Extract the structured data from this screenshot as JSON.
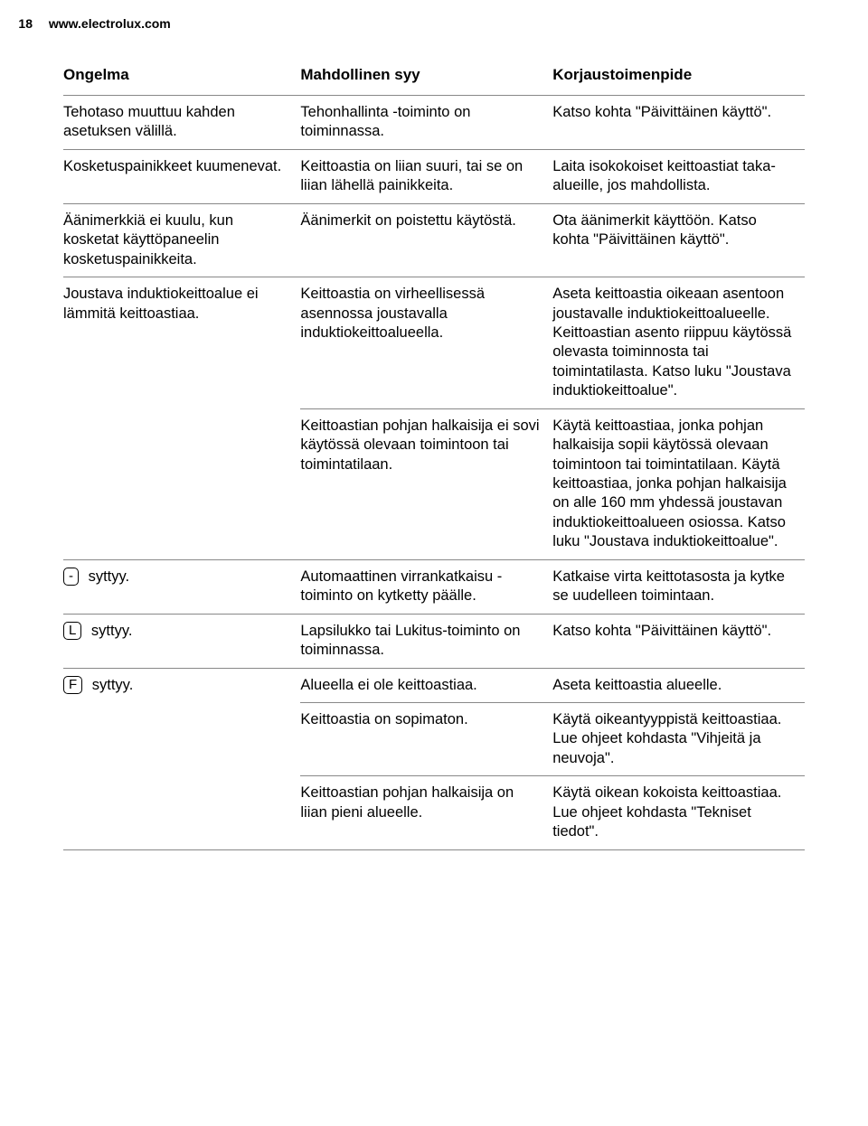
{
  "header": {
    "page_number": "18",
    "url": "www.electrolux.com"
  },
  "table": {
    "columns": [
      "Ongelma",
      "Mahdollinen syy",
      "Korjaustoimenpide"
    ],
    "rows": [
      {
        "problem": "Tehotaso muuttuu kahden asetuksen välillä.",
        "cause": "Tehonhallinta -toiminto on toiminnassa.",
        "fix": "Katso kohta \"Päivittäinen käyttö\"."
      },
      {
        "problem": "Kosketuspainikkeet kuumenevat.",
        "cause": "Keittoastia on liian suuri, tai se on liian lähellä painikkeita.",
        "fix": "Laita isokokoiset keittoastiat taka-alueille, jos mahdollista."
      },
      {
        "problem": "Äänimerkkiä ei kuulu, kun kosketat käyttöpaneelin kosketuspainikkeita.",
        "cause": "Äänimerkit on poistettu käytöstä.",
        "fix": "Ota äänimerkit käyttöön. Katso kohta \"Päivittäinen käyttö\"."
      },
      {
        "problem": "Joustava induktiokeittoalue ei lämmitä keittoastiaa.",
        "cause": "Keittoastia on virheellisessä asennossa joustavalla induktiokeittoalueella.",
        "fix": "Aseta keittoastia oikeaan asentoon joustavalle induktiokeittoalueelle. Keittoastian asento riippuu käytössä olevasta toiminnosta tai toimintatilasta.\nKatso luku \"Joustava induktiokeittoalue\"."
      },
      {
        "problem": "",
        "cause": "Keittoastian pohjan halkaisija ei sovi käytössä olevaan toimintoon tai toimintatilaan.",
        "fix": "Käytä keittoastiaa, jonka pohjan halkaisija sopii käytössä olevaan toimintoon tai toimintatilaan. Käytä keittoastiaa, jonka pohjan halkaisija on alle 160 mm yhdessä joustavan induktiokeittoalueen osiossa.\nKatso luku \"Joustava induktiokeittoalue\"."
      },
      {
        "symbol": "-",
        "problem_suffix": " syttyy.",
        "cause": "Automaattinen virrankatkaisu -toiminto on kytketty päälle.",
        "fix": "Katkaise virta keittotasosta ja kytke se uudelleen toimintaan."
      },
      {
        "symbol": "L",
        "problem_suffix": " syttyy.",
        "cause": "Lapsilukko tai Lukitus-toiminto on toiminnassa.",
        "fix": "Katso kohta \"Päivittäinen käyttö\"."
      },
      {
        "symbol": "F",
        "problem_suffix": " syttyy.",
        "cause": "Alueella ei ole keittoastiaa.",
        "fix": "Aseta keittoastia alueelle."
      },
      {
        "problem": "",
        "cause": "Keittoastia on sopimaton.",
        "fix": "Käytä oikeantyyppistä keittoastiaa.\nLue ohjeet kohdasta \"Vihjeitä ja neuvoja\"."
      },
      {
        "problem": "",
        "cause": "Keittoastian pohjan halkaisija on liian pieni alueelle.",
        "fix": "Käytä oikean kokoista keittoastiaa.\nLue ohjeet kohdasta \"Tekniset tiedot\"."
      }
    ]
  }
}
